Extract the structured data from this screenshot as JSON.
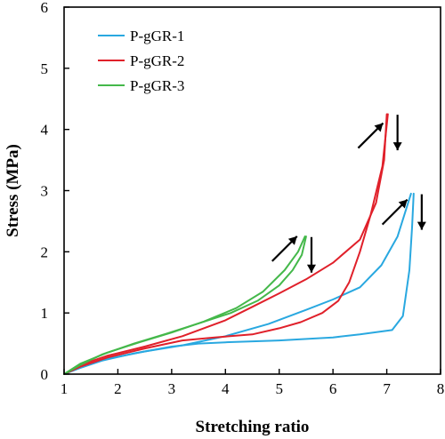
{
  "chart_data": {
    "type": "line",
    "xlabel": "Stretching ratio",
    "ylabel": "Stress (MPa)",
    "xlim": [
      1,
      8
    ],
    "ylim": [
      0,
      6
    ],
    "xticks": [
      1,
      2,
      3,
      4,
      5,
      6,
      7,
      8
    ],
    "yticks": [
      0,
      1,
      2,
      3,
      4,
      5,
      6
    ],
    "grid": false,
    "legend_position": "top-left",
    "series": [
      {
        "name": "P-gGR-1",
        "color": "#29a8e0",
        "loading": [
          [
            1,
            0
          ],
          [
            1.3,
            0.12
          ],
          [
            1.8,
            0.25
          ],
          [
            2.5,
            0.37
          ],
          [
            3.2,
            0.47
          ],
          [
            4,
            0.62
          ],
          [
            4.8,
            0.82
          ],
          [
            5.5,
            1.05
          ],
          [
            6,
            1.22
          ],
          [
            6.5,
            1.42
          ],
          [
            6.9,
            1.78
          ],
          [
            7.2,
            2.25
          ],
          [
            7.45,
            2.95
          ]
        ],
        "unloading": [
          [
            7.5,
            2.95
          ],
          [
            7.47,
            2.4
          ],
          [
            7.42,
            1.7
          ],
          [
            7.3,
            0.95
          ],
          [
            7.1,
            0.72
          ],
          [
            6.5,
            0.65
          ],
          [
            6,
            0.6
          ],
          [
            5,
            0.55
          ],
          [
            4,
            0.52
          ],
          [
            3.5,
            0.5
          ],
          [
            3,
            0.45
          ],
          [
            2.3,
            0.34
          ],
          [
            1.7,
            0.22
          ],
          [
            1.3,
            0.1
          ],
          [
            1,
            0
          ]
        ]
      },
      {
        "name": "P-gGR-2",
        "color": "#e0202a",
        "loading": [
          [
            1,
            0
          ],
          [
            1.3,
            0.15
          ],
          [
            1.8,
            0.3
          ],
          [
            2.5,
            0.45
          ],
          [
            3.2,
            0.62
          ],
          [
            4,
            0.88
          ],
          [
            4.5,
            1.1
          ],
          [
            5,
            1.32
          ],
          [
            5.5,
            1.55
          ],
          [
            6,
            1.82
          ],
          [
            6.5,
            2.2
          ],
          [
            6.8,
            2.8
          ],
          [
            6.95,
            3.5
          ],
          [
            7,
            4.25
          ]
        ],
        "unloading": [
          [
            7.02,
            4.25
          ],
          [
            6.92,
            3.4
          ],
          [
            6.7,
            2.6
          ],
          [
            6.5,
            2
          ],
          [
            6.3,
            1.5
          ],
          [
            6.1,
            1.2
          ],
          [
            5.8,
            1
          ],
          [
            5.4,
            0.85
          ],
          [
            5,
            0.75
          ],
          [
            4.5,
            0.65
          ],
          [
            3.8,
            0.6
          ],
          [
            3.2,
            0.55
          ],
          [
            2.5,
            0.42
          ],
          [
            1.8,
            0.27
          ],
          [
            1.3,
            0.12
          ],
          [
            1,
            0
          ]
        ]
      },
      {
        "name": "P-gGR-3",
        "color": "#44b84a",
        "loading": [
          [
            1,
            0
          ],
          [
            1.3,
            0.17
          ],
          [
            1.8,
            0.35
          ],
          [
            2.4,
            0.52
          ],
          [
            3,
            0.68
          ],
          [
            3.6,
            0.86
          ],
          [
            4.2,
            1.08
          ],
          [
            4.7,
            1.35
          ],
          [
            5.1,
            1.7
          ],
          [
            5.35,
            2
          ],
          [
            5.48,
            2.25
          ]
        ],
        "unloading": [
          [
            5.5,
            2.25
          ],
          [
            5.42,
            1.95
          ],
          [
            5.25,
            1.7
          ],
          [
            5,
            1.45
          ],
          [
            4.6,
            1.2
          ],
          [
            4.1,
            1
          ],
          [
            3.5,
            0.83
          ],
          [
            2.9,
            0.66
          ],
          [
            2.3,
            0.5
          ],
          [
            1.7,
            0.32
          ],
          [
            1.3,
            0.15
          ],
          [
            1,
            0
          ]
        ]
      }
    ],
    "annotations": [
      {
        "type": "arrow",
        "direction": "up-right",
        "at": [
          5.1,
          2.05
        ]
      },
      {
        "type": "arrow",
        "direction": "down",
        "at": [
          5.6,
          1.95
        ]
      },
      {
        "type": "arrow",
        "direction": "up-right",
        "at": [
          6.7,
          3.9
        ]
      },
      {
        "type": "arrow",
        "direction": "down",
        "at": [
          7.2,
          3.95
        ]
      },
      {
        "type": "arrow",
        "direction": "up-right",
        "at": [
          7.15,
          2.65
        ]
      },
      {
        "type": "arrow",
        "direction": "down",
        "at": [
          7.65,
          2.65
        ]
      }
    ]
  }
}
